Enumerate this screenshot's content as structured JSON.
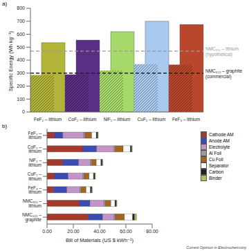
{
  "source": "Current Opinion in Electrochemistry",
  "chart_data": [
    {
      "panel": "a)",
      "type": "bar",
      "y_label": "Specific Energy (Wh kg⁻¹)",
      "categories": [
        "FeF₂ – lithium",
        "CoF₂ – lithium",
        "NiF₂ – lithium",
        "CuF₂ – lithium",
        "FeF₃ – lithium"
      ],
      "values": [
        535,
        555,
        620,
        700,
        675
      ],
      "hatched_values": [
        285,
        290,
        320,
        370,
        365
      ],
      "colors": [
        "#b3b53a",
        "#5b2e86",
        "#a6d96a",
        "#a9c9ee",
        "#b8472b"
      ],
      "ylim": [
        0,
        800
      ],
      "yticks": [
        0,
        100,
        200,
        300,
        400,
        500,
        600,
        700,
        800
      ],
      "reference_lines": [
        {
          "value": 470,
          "label": [
            "NMC₈₁₁ – lithium",
            "(hypothetical)"
          ],
          "color": "#999999",
          "line_style": "dashed"
        },
        {
          "value": 300,
          "label": [
            "NMC₆₂₂ – graphite",
            "(commercial)"
          ],
          "color": "#222222",
          "line_style": "dashed"
        }
      ]
    },
    {
      "panel": "b)",
      "type": "bar",
      "orientation": "horizontal",
      "stacked": true,
      "x_label": "Bill of Materials (US $ kWh⁻¹)",
      "categories": [
        "FeF₂ – lithium",
        "CoF₂ – lithium",
        "NiF₂ – lithium",
        "CuF₂ – lithium",
        "FeF₃ – lithium",
        "NMC₈₁₁ – lithium",
        "NMC₆₂₂ – graphite"
      ],
      "series": [
        {
          "name": "Cathode AM",
          "color": "#a33a2b",
          "values": [
            5.7,
            27.4,
            12,
            5.7,
            5,
            24.6,
            31.4
          ]
        },
        {
          "name": "Anode AM",
          "color": "#3a4cb2",
          "values": [
            6.3,
            10.3,
            12,
            10.3,
            10,
            8,
            10.9
          ]
        },
        {
          "name": "Electrolyte",
          "color": "#c493c8",
          "values": [
            16,
            13.2,
            9,
            11.4,
            10,
            10.8,
            8.8
          ]
        },
        {
          "name": "Al Foil",
          "color": "#9a9a9a",
          "values": [
            1,
            1,
            1,
            1,
            1,
            1,
            1
          ]
        },
        {
          "name": "Cu Foil",
          "color": "#a3661c",
          "values": [
            5,
            6,
            3.5,
            3.6,
            3.7,
            4.2,
            6.8
          ]
        },
        {
          "name": "Separator",
          "color": "#ffffff",
          "values": [
            3.5,
            5.5,
            3.5,
            3.4,
            3.3,
            3.1,
            6.2
          ]
        },
        {
          "name": "Carbon",
          "color": "#222222",
          "values": [
            1,
            1,
            1,
            1,
            1,
            1,
            1.5
          ]
        },
        {
          "name": "Binder",
          "color": "#a3c35c",
          "values": [
            0.5,
            0.5,
            0.5,
            0.5,
            0.5,
            0.5,
            1.5
          ]
        }
      ],
      "xlim": [
        0,
        80
      ],
      "xticks": [
        {
          "value": 0,
          "label": "0.00"
        },
        {
          "value": 20,
          "label": "20.00"
        },
        {
          "value": 40,
          "label": "40.00"
        },
        {
          "value": 60,
          "label": "60.00"
        },
        {
          "value": 80,
          "label": "80.00"
        }
      ],
      "legend": "right"
    }
  ]
}
